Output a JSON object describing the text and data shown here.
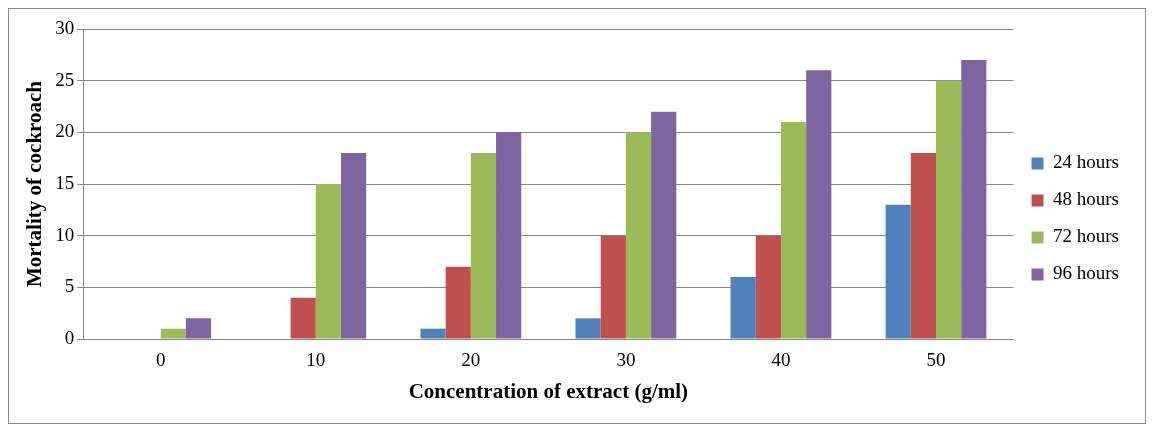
{
  "chart_data": {
    "type": "bar",
    "xlabel": "Concentration of extract (g/ml)",
    "ylabel": "Mortality of cockroach",
    "categories": [
      "0",
      "10",
      "20",
      "30",
      "40",
      "50"
    ],
    "series": [
      {
        "name": "24 hours",
        "color": "#4f81bd",
        "values": [
          0,
          0,
          1,
          2,
          6,
          13
        ]
      },
      {
        "name": "48 hours",
        "color": "#c0504d",
        "values": [
          0,
          4,
          7,
          10,
          10,
          18
        ]
      },
      {
        "name": "72 hours",
        "color": "#9bbb59",
        "values": [
          1,
          15,
          18,
          20,
          21,
          25
        ]
      },
      {
        "name": "96 hours",
        "color": "#8064a2",
        "values": [
          2,
          18,
          20,
          22,
          26,
          27
        ]
      }
    ],
    "ylim": [
      0,
      30
    ],
    "yticks": [
      0,
      5,
      10,
      15,
      20,
      25,
      30
    ],
    "grid": "y",
    "legend": "right"
  }
}
